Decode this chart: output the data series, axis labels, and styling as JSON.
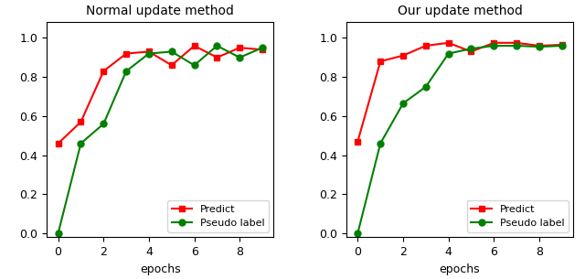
{
  "epochs": [
    0,
    1,
    2,
    3,
    4,
    5,
    6,
    7,
    8,
    9
  ],
  "left": {
    "title": "Normal update method",
    "predict": [
      0.46,
      0.57,
      0.83,
      0.92,
      0.93,
      0.86,
      0.96,
      0.9,
      0.95,
      0.94
    ],
    "pseudo": [
      0.0,
      0.46,
      0.56,
      0.83,
      0.92,
      0.93,
      0.86,
      0.96,
      0.9,
      0.95
    ]
  },
  "right": {
    "title": "Our update method",
    "predict": [
      0.47,
      0.88,
      0.91,
      0.96,
      0.975,
      0.93,
      0.975,
      0.975,
      0.96,
      0.965
    ],
    "pseudo": [
      0.0,
      0.46,
      0.665,
      0.75,
      0.92,
      0.945,
      0.96,
      0.96,
      0.955,
      0.96
    ]
  },
  "predict_color": "#ff0000",
  "pseudo_color": "#008000",
  "predict_marker": "s",
  "pseudo_marker": "o",
  "xlabel": "epochs",
  "ylim": [
    -0.02,
    1.08
  ],
  "legend_predict": "Predict",
  "legend_pseudo": "Pseudo label",
  "title_fontsize": 10,
  "label_fontsize": 9,
  "tick_fontsize": 9,
  "legend_fontsize": 8,
  "linewidth": 1.5,
  "markersize": 5
}
